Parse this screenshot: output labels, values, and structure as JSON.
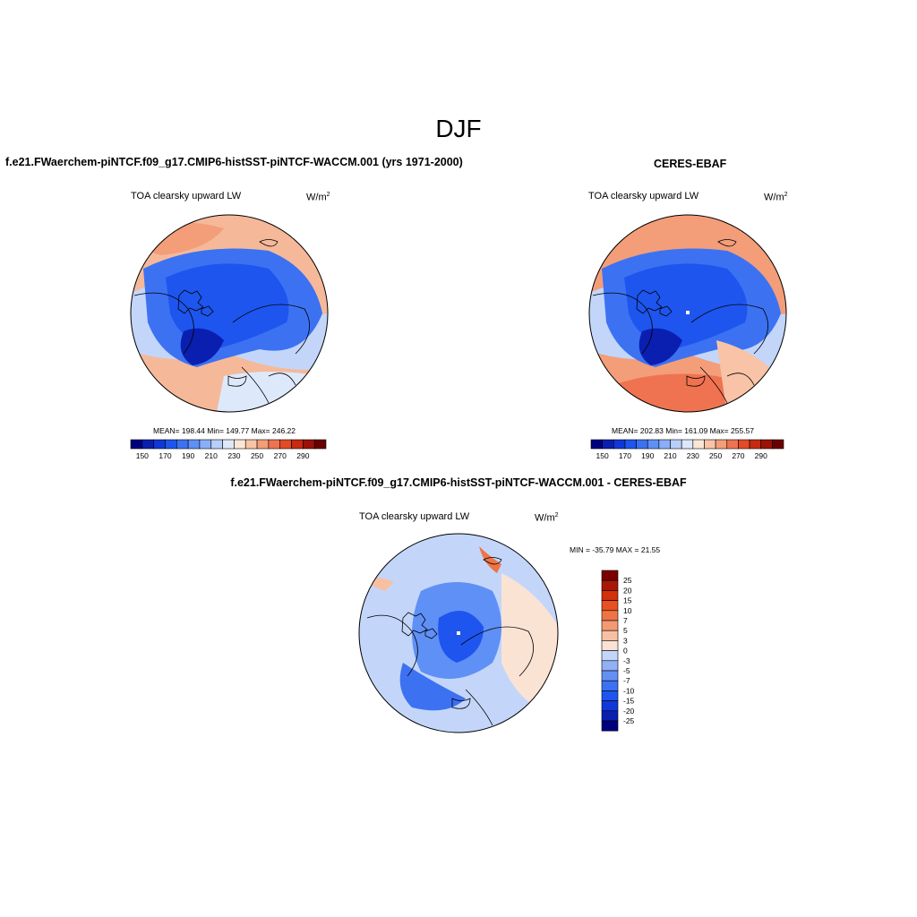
{
  "season": "DJF",
  "panels": {
    "model": {
      "title": "f.e21.FWaerchem-piNTCF.f09_g17.CMIP6-histSST-piNTCF-WACCM.001 (yrs 1971-2000)",
      "variable": "TOA clearsky upward LW",
      "units": "W/m",
      "units_sup": "2",
      "stats": "MEAN= 198.44  Min= 149.77  Max= 246.22"
    },
    "obs": {
      "title": "CERES-EBAF",
      "variable": "TOA clearsky upward LW",
      "units": "W/m",
      "units_sup": "2",
      "stats": "MEAN= 202.83  Min= 161.09  Max= 255.57"
    },
    "diff": {
      "title": "f.e21.FWaerchem-piNTCF.f09_g17.CMIP6-histSST-piNTCF-WACCM.001 - CERES-EBAF",
      "variable": "TOA clearsky upward LW",
      "units": "W/m",
      "units_sup": "2",
      "stats": "MIN = -35.79 MAX =  21.55"
    }
  },
  "colorbar_abs": {
    "colors": [
      "#00007f",
      "#0a1fb0",
      "#1038d8",
      "#1e55ee",
      "#3c72f2",
      "#5f90f6",
      "#8aaff8",
      "#b8cff9",
      "#dde9fb",
      "#fbe6d6",
      "#f8c3a6",
      "#f49d79",
      "#ef7350",
      "#e34a26",
      "#c62a10",
      "#9b1208",
      "#6a0000"
    ],
    "ticks": [
      "150",
      "170",
      "190",
      "210",
      "230",
      "250",
      "270",
      "290"
    ]
  },
  "colorbar_diff": {
    "colors": [
      "#00007f",
      "#0a1fb0",
      "#1038d8",
      "#1e55ee",
      "#3c72f2",
      "#6390f2",
      "#92b0f6",
      "#c3d6fa",
      "#fbe3d4",
      "#f8c0a2",
      "#f39a74",
      "#ee7446",
      "#e85021",
      "#d3300b",
      "#a81807",
      "#7a0000"
    ],
    "ticks": [
      "25",
      "20",
      "15",
      "10",
      "7",
      "5",
      "3",
      "0",
      "-3",
      "-5",
      "-7",
      "-10",
      "-15",
      "-20",
      "-25"
    ]
  }
}
